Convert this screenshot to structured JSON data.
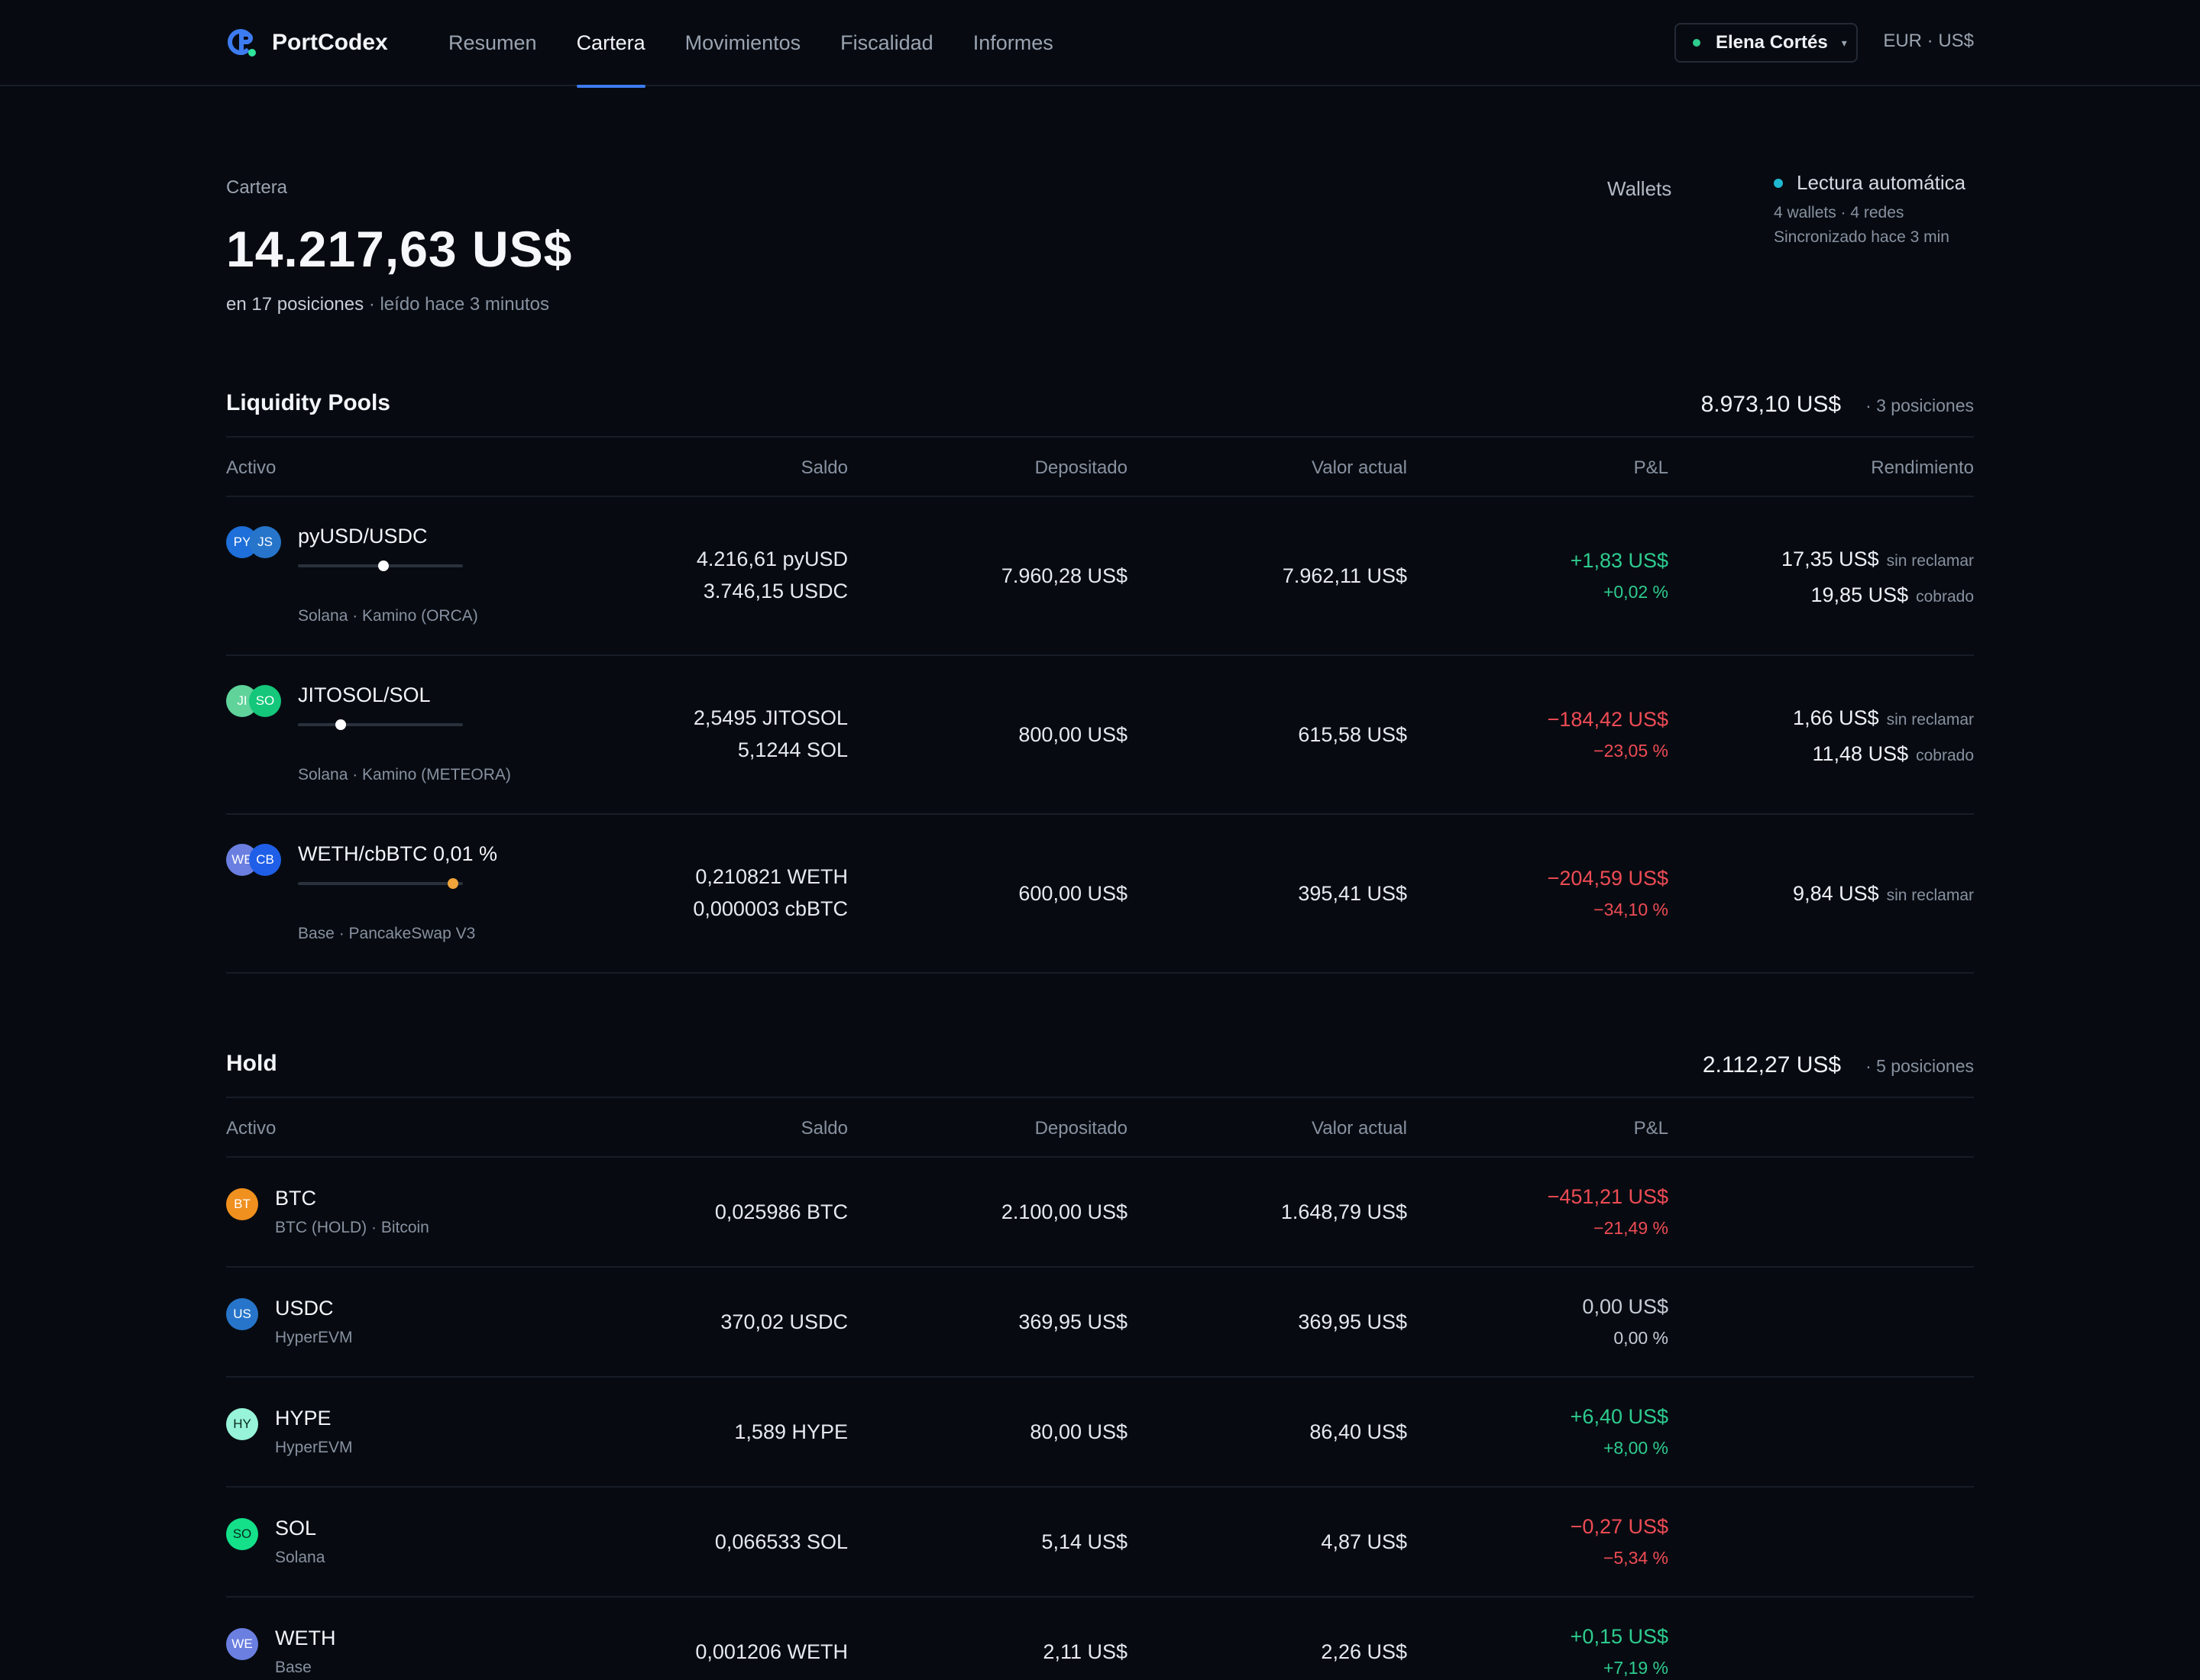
{
  "brand": {
    "name": "PortCodex",
    "logo_icon": "portcodex-logo-icon"
  },
  "nav": {
    "items": [
      {
        "label": "Resumen",
        "active": false
      },
      {
        "label": "Cartera",
        "active": true
      },
      {
        "label": "Movimientos",
        "active": false
      },
      {
        "label": "Fiscalidad",
        "active": false
      },
      {
        "label": "Informes",
        "active": false
      }
    ],
    "user": "Elena Cortés",
    "caret": "▾",
    "currency": "EUR · US$"
  },
  "summary": {
    "label": "Cartera",
    "total": "14.217,63 US$",
    "positions": "en 17 posiciones",
    "read": "· leído hace 3 minutos",
    "wallets_label": "Wallets",
    "auto_title": "Lectura automática",
    "auto_line1": "4 wallets · 4 redes",
    "auto_line2": "Sincronizado hace 3 min"
  },
  "columns": {
    "activo": "Activo",
    "saldo": "Saldo",
    "depositado": "Depositado",
    "valor": "Valor actual",
    "pnl": "P&L",
    "rendimiento": "Rendimiento"
  },
  "lp": {
    "title": "Liquidity Pools",
    "total": "8.973,10 US$",
    "count": "· 3 posiciones",
    "rows": [
      {
        "name": "pyUSD/USDC",
        "sub": "Solana · Kamino (ORCA)",
        "tok1": {
          "label": "PY",
          "color": "#1e6fd9"
        },
        "tok2": {
          "label": "JS",
          "color": "#2775ca"
        },
        "range": 0.52,
        "in_range": true,
        "saldo1": "4.216,61 pyUSD",
        "saldo2": "3.746,15 USDC",
        "depositado": "7.960,28 US$",
        "valor": "7.962,11 US$",
        "pnl": "+1,83 US$",
        "pnl_pct": "+0,02 %",
        "trend": "pos",
        "rend": [
          {
            "value": "17,35 US$",
            "label": "sin reclamar"
          },
          {
            "value": "19,85 US$",
            "label": "cobrado"
          }
        ]
      },
      {
        "name": "JITOSOL/SOL",
        "sub": "Solana · Kamino (METEORA)",
        "tok1": {
          "label": "JI",
          "color": "#5fd39a"
        },
        "tok2": {
          "label": "SO",
          "color": "#14c77a"
        },
        "range": 0.26,
        "in_range": true,
        "saldo1": "2,5495 JITOSOL",
        "saldo2": "5,1244 SOL",
        "depositado": "800,00 US$",
        "valor": "615,58 US$",
        "pnl": "−184,42 US$",
        "pnl_pct": "−23,05 %",
        "trend": "neg",
        "rend": [
          {
            "value": "1,66 US$",
            "label": "sin reclamar"
          },
          {
            "value": "11,48 US$",
            "label": "cobrado"
          }
        ]
      },
      {
        "name": "WETH/cbBTC 0,01 %",
        "sub": "Base · PancakeSwap V3",
        "tok1": {
          "label": "WE",
          "color": "#6a7fe0"
        },
        "tok2": {
          "label": "CB",
          "color": "#1f5fe8"
        },
        "range": 0.94,
        "in_range": false,
        "saldo1": "0,210821 WETH",
        "saldo2": "0,000003 cbBTC",
        "depositado": "600,00 US$",
        "valor": "395,41 US$",
        "pnl": "−204,59 US$",
        "pnl_pct": "−34,10 %",
        "trend": "neg",
        "rend": [
          {
            "value": "9,84 US$",
            "label": "sin reclamar"
          }
        ]
      }
    ]
  },
  "hold": {
    "title": "Hold",
    "total": "2.112,27 US$",
    "count": "· 5 posiciones",
    "rows": [
      {
        "name": "BTC",
        "sub": "BTC (HOLD) · Bitcoin",
        "tok": {
          "label": "BT",
          "color": "#f0901e"
        },
        "saldo": "0,025986 BTC",
        "depositado": "2.100,00 US$",
        "valor": "1.648,79 US$",
        "pnl": "−451,21 US$",
        "pnl_pct": "−21,49 %",
        "trend": "neg"
      },
      {
        "name": "USDC",
        "sub": "HyperEVM",
        "tok": {
          "label": "US",
          "color": "#2775ca"
        },
        "saldo": "370,02 USDC",
        "depositado": "369,95 US$",
        "valor": "369,95 US$",
        "pnl": "0,00 US$",
        "pnl_pct": "0,00 %",
        "trend": "neutral"
      },
      {
        "name": "HYPE",
        "sub": "HyperEVM",
        "tok": {
          "label": "HY",
          "color": "#97f4d8"
        },
        "saldo": "1,589 HYPE",
        "depositado": "80,00 US$",
        "valor": "86,40 US$",
        "pnl": "+6,40 US$",
        "pnl_pct": "+8,00 %",
        "trend": "pos"
      },
      {
        "name": "SOL",
        "sub": "Solana",
        "tok": {
          "label": "SO",
          "color": "#14e08a"
        },
        "saldo": "0,066533 SOL",
        "depositado": "5,14 US$",
        "valor": "4,87 US$",
        "pnl": "−0,27 US$",
        "pnl_pct": "−5,34 %",
        "trend": "neg"
      },
      {
        "name": "WETH",
        "sub": "Base",
        "tok": {
          "label": "WE",
          "color": "#6a7fe0"
        },
        "saldo": "0,001206 WETH",
        "depositado": "2,11 US$",
        "valor": "2,26 US$",
        "pnl": "+0,15 US$",
        "pnl_pct": "+7,19 %",
        "trend": "pos"
      }
    ]
  }
}
